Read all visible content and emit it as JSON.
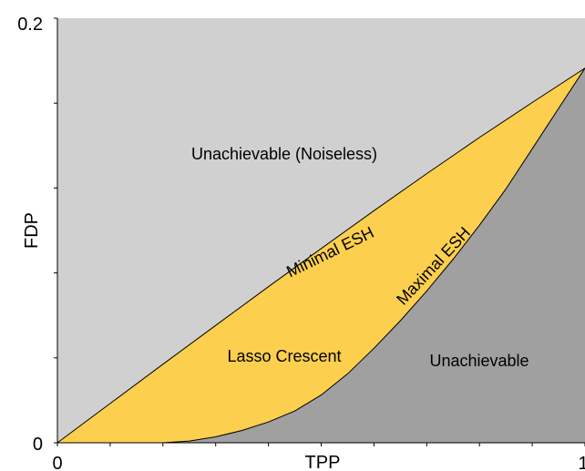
{
  "chart_data": {
    "type": "area",
    "title": "",
    "xlabel": "TPP",
    "ylabel": "FDP",
    "xlim": [
      0,
      1
    ],
    "ylim": [
      0,
      0.2
    ],
    "x_tick_labels": [
      "0",
      "1"
    ],
    "y_tick_labels": [
      "0",
      "0.2"
    ],
    "curves": [
      {
        "name": "Minimal ESH",
        "x": [
          0,
          0.1,
          0.2,
          0.3,
          0.4,
          0.5,
          0.6,
          0.7,
          0.8,
          0.9,
          1.0
        ],
        "y": [
          0,
          0.0185,
          0.037,
          0.0553,
          0.0735,
          0.0915,
          0.1093,
          0.1268,
          0.1438,
          0.1603,
          0.1765
        ]
      },
      {
        "name": "Maximal ESH",
        "x": [
          0,
          0.2,
          0.25,
          0.3,
          0.35,
          0.4,
          0.45,
          0.5,
          0.55,
          0.6,
          0.65,
          0.7,
          0.75,
          0.8,
          0.85,
          0.9,
          0.95,
          1.0
        ],
        "y": [
          0,
          0,
          0.0008,
          0.0028,
          0.0058,
          0.0098,
          0.015,
          0.0225,
          0.0325,
          0.0445,
          0.0575,
          0.0715,
          0.0865,
          0.1025,
          0.1195,
          0.1385,
          0.1575,
          0.1765
        ]
      }
    ],
    "regions": [
      {
        "label": "Unachievable (Noiseless)",
        "color": "#d0d0d0"
      },
      {
        "label": "Lasso Crescent",
        "color": "#fccf4e"
      },
      {
        "label": "Unachievable",
        "color": "#a0a0a0"
      }
    ]
  }
}
